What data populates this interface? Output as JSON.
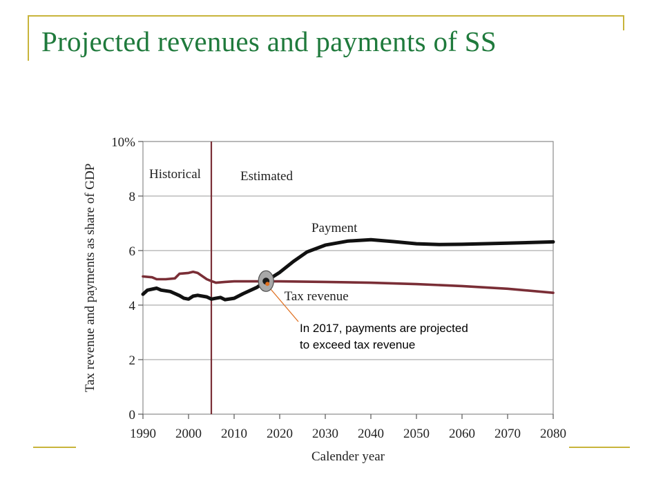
{
  "slide": {
    "title": "Projected revenues and payments of SS"
  },
  "chart_data": {
    "type": "line",
    "title": "",
    "xlabel": "Calender year",
    "ylabel": "Tax revenue and payments as share of GDP",
    "xlim": [
      1990,
      2080
    ],
    "ylim": [
      0,
      10
    ],
    "x_ticks": [
      "1990",
      "2000",
      "2010",
      "2020",
      "2030",
      "2040",
      "2050",
      "2060",
      "2070",
      "2080"
    ],
    "y_ticks": [
      "0",
      "2",
      "4",
      "6",
      "8",
      "10%"
    ],
    "grid": true,
    "divider_year": 2005,
    "region_labels": {
      "left": "Historical",
      "right": "Estimated"
    },
    "series": [
      {
        "name": "Payment",
        "color": "#111111",
        "points": [
          [
            1990,
            4.4
          ],
          [
            1991,
            4.55
          ],
          [
            1993,
            4.62
          ],
          [
            1994,
            4.55
          ],
          [
            1996,
            4.5
          ],
          [
            1998,
            4.35
          ],
          [
            1999,
            4.25
          ],
          [
            2000,
            4.22
          ],
          [
            2001,
            4.33
          ],
          [
            2002,
            4.36
          ],
          [
            2004,
            4.3
          ],
          [
            2005,
            4.22
          ],
          [
            2006,
            4.25
          ],
          [
            2007,
            4.28
          ],
          [
            2008,
            4.2
          ],
          [
            2010,
            4.25
          ],
          [
            2012,
            4.42
          ],
          [
            2015,
            4.65
          ],
          [
            2017,
            4.88
          ],
          [
            2020,
            5.2
          ],
          [
            2023,
            5.6
          ],
          [
            2026,
            5.95
          ],
          [
            2030,
            6.2
          ],
          [
            2035,
            6.35
          ],
          [
            2040,
            6.4
          ],
          [
            2045,
            6.33
          ],
          [
            2050,
            6.25
          ],
          [
            2055,
            6.22
          ],
          [
            2060,
            6.23
          ],
          [
            2070,
            6.27
          ],
          [
            2080,
            6.32
          ]
        ]
      },
      {
        "name": "Tax revenue",
        "color": "#7a2e36",
        "points": [
          [
            1990,
            5.05
          ],
          [
            1992,
            5.02
          ],
          [
            1993,
            4.95
          ],
          [
            1995,
            4.95
          ],
          [
            1997,
            4.98
          ],
          [
            1998,
            5.15
          ],
          [
            2000,
            5.18
          ],
          [
            2001,
            5.22
          ],
          [
            2002,
            5.18
          ],
          [
            2004,
            4.95
          ],
          [
            2005,
            4.88
          ],
          [
            2006,
            4.82
          ],
          [
            2008,
            4.85
          ],
          [
            2010,
            4.87
          ],
          [
            2020,
            4.87
          ],
          [
            2030,
            4.85
          ],
          [
            2040,
            4.82
          ],
          [
            2050,
            4.77
          ],
          [
            2060,
            4.7
          ],
          [
            2070,
            4.6
          ],
          [
            2080,
            4.45
          ]
        ]
      }
    ],
    "annotation": {
      "year": 2017,
      "value": 4.88,
      "lines": [
        "In 2017, payments are projected",
        "to exceed tax revenue"
      ],
      "marker_color": "#e07020"
    }
  }
}
